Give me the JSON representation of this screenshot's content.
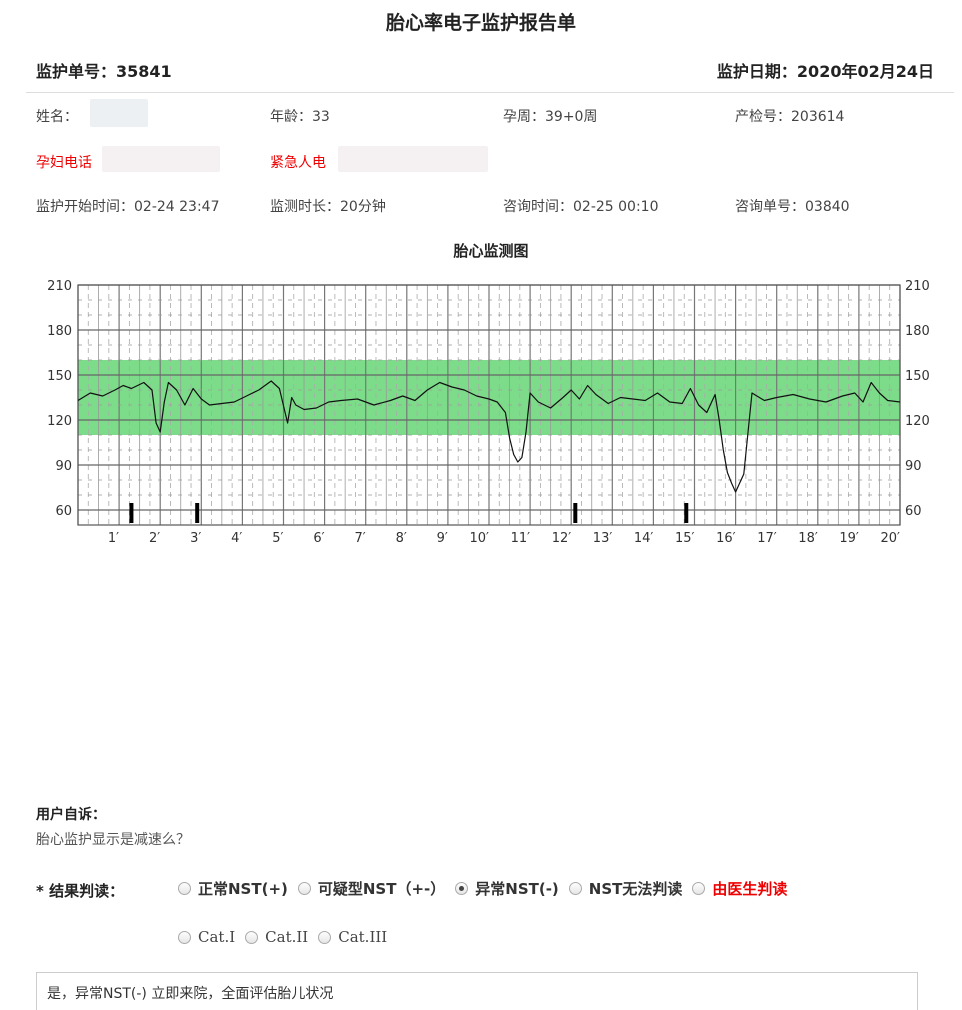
{
  "report": {
    "title": "胎心率电子监护报告单",
    "monitor_no": "监护单号：35841",
    "monitor_date": "监护日期：2020年02月24日"
  },
  "patient": {
    "name_label": "姓名：",
    "age": "年龄：33",
    "gestational_week": "孕周：39+0周",
    "prenatal_no": "产检号：203614",
    "phone_label": "孕妇电话",
    "emergency_label": "紧急人电",
    "start_time": "监护开始时间：02-24 23:47",
    "duration": "监测时长：20分钟",
    "consult_time": "咨询时间：02-25 00:10",
    "consult_no": "咨询单号：03840"
  },
  "chart_data": {
    "type": "line",
    "title": "胎心监测图",
    "x_unit": "minutes",
    "xlim": [
      0,
      20
    ],
    "ylim": [
      50,
      210
    ],
    "y_ticks": [
      60,
      90,
      120,
      150,
      180,
      210
    ],
    "x_tick_labels": [
      "1′",
      "2′",
      "3′",
      "4′",
      "5′",
      "6′",
      "7′",
      "8′",
      "9′",
      "10′",
      "11′",
      "12′",
      "13′",
      "14′",
      "15′",
      "16′",
      "17′",
      "18′",
      "19′",
      "20′"
    ],
    "normal_band": [
      110,
      160
    ],
    "band_color": "#7ddc8a",
    "line_color": "#111111",
    "grid": true,
    "fetal_movement_marks": [
      1.3,
      2.9,
      12.1,
      14.8
    ],
    "series": [
      {
        "x": [
          0,
          0.3,
          0.6,
          0.9,
          1.1,
          1.3,
          1.6,
          1.8,
          1.9,
          2.0,
          2.1,
          2.2,
          2.4,
          2.6,
          2.8,
          3.0,
          3.2,
          3.5,
          3.8,
          4.1,
          4.4,
          4.7,
          4.9,
          5.1,
          5.2,
          5.3,
          5.5,
          5.8,
          6.1,
          6.4,
          6.8,
          7.2,
          7.6,
          7.9,
          8.2,
          8.5,
          8.8,
          9.1,
          9.4,
          9.7,
          10.0,
          10.2,
          10.4,
          10.5,
          10.6,
          10.7,
          10.8,
          10.9,
          11.0,
          11.2,
          11.5,
          11.8,
          12.0,
          12.2,
          12.4,
          12.6,
          12.9,
          13.2,
          13.5,
          13.8,
          14.1,
          14.4,
          14.7,
          14.9,
          15.1,
          15.3,
          15.5,
          15.6,
          15.7,
          15.8,
          15.9,
          16.0,
          16.1,
          16.2,
          16.4,
          16.7,
          17.0,
          17.4,
          17.8,
          18.2,
          18.6,
          18.9,
          19.1,
          19.3,
          19.5,
          19.7,
          20.0
        ],
        "values": [
          133,
          138,
          136,
          140,
          143,
          141,
          145,
          140,
          118,
          112,
          132,
          145,
          140,
          130,
          141,
          134,
          130,
          131,
          132,
          136,
          140,
          146,
          141,
          118,
          135,
          130,
          127,
          128,
          132,
          133,
          134,
          130,
          133,
          136,
          133,
          140,
          145,
          142,
          140,
          136,
          134,
          132,
          125,
          108,
          97,
          92,
          95,
          112,
          138,
          132,
          128,
          135,
          140,
          134,
          143,
          137,
          131,
          135,
          134,
          133,
          138,
          132,
          131,
          141,
          130,
          125,
          137,
          120,
          100,
          85,
          78,
          72,
          78,
          84,
          138,
          133,
          135,
          137,
          134,
          132,
          136,
          138,
          132,
          145,
          138,
          133,
          132
        ]
      }
    ]
  },
  "complaint": {
    "title": "用户自诉：",
    "text": "胎心监护显示是减速么？"
  },
  "result": {
    "label": "* 结果判读：",
    "options": [
      "正常NST(+)",
      "可疑型NST（+-）",
      "异常NST(-)",
      "NST无法判读",
      "由医生判读"
    ],
    "categories": [
      "Cat.I",
      "Cat.II",
      "Cat.III"
    ],
    "comment": "是，异常NST(-) 立即来院，全面评估胎儿状况"
  }
}
